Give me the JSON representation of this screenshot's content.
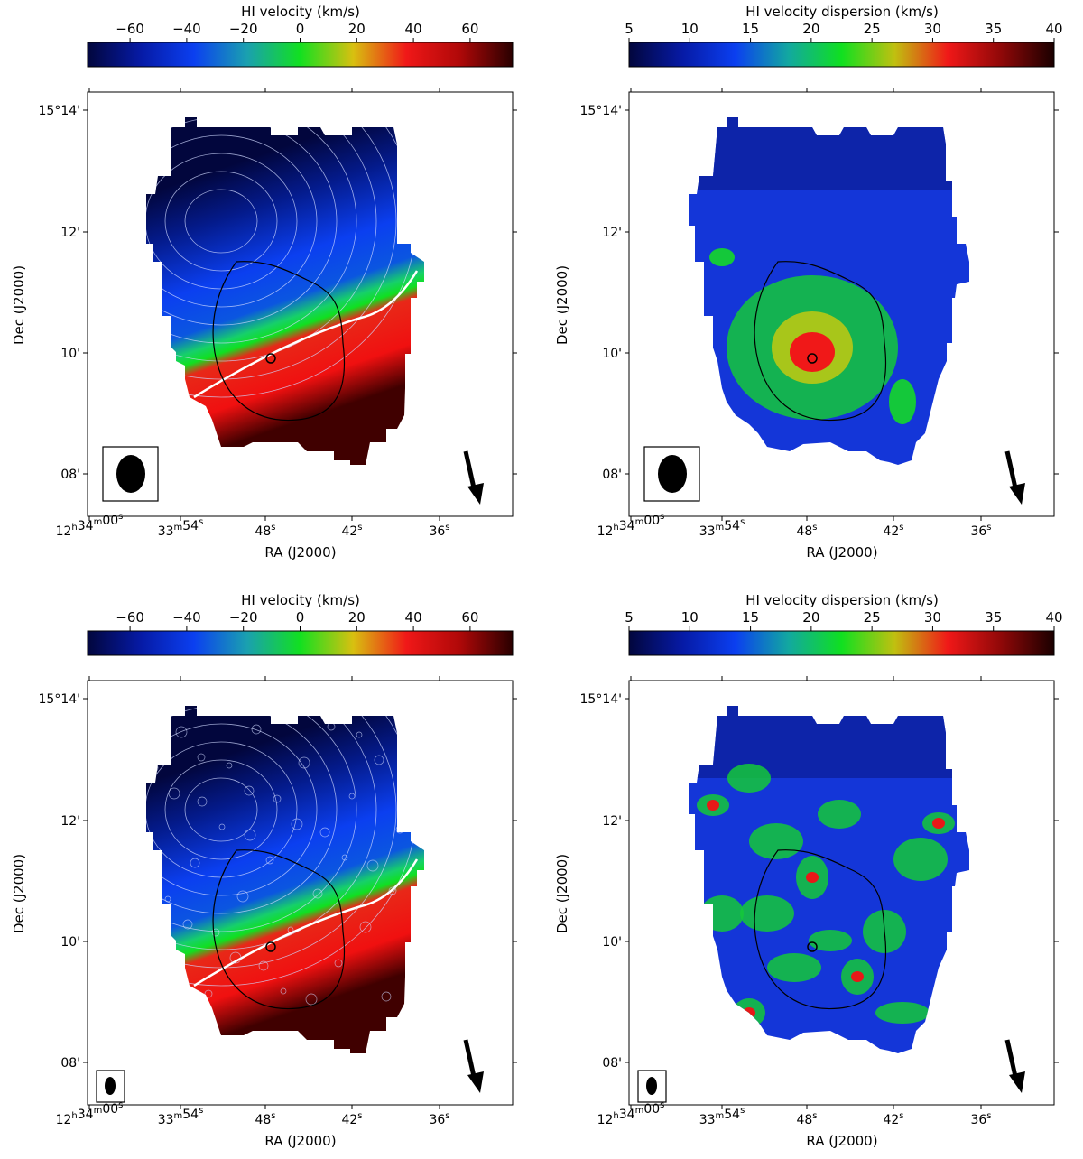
{
  "colors": {
    "velocity_stops": [
      "#02063d",
      "#061aa5",
      "#0b3ff0",
      "#1aa0b0",
      "#12e020",
      "#d8c010",
      "#f01818",
      "#b00808",
      "#2a0000"
    ],
    "dispersion_stops": [
      "#02063d",
      "#061aa5",
      "#0b3ff0",
      "#12a8a0",
      "#10e020",
      "#c0c010",
      "#f01818",
      "#900808",
      "#1a0000"
    ],
    "frame": "#000000",
    "contour": "#cfd8ff",
    "zero_contour": "#ffffff",
    "optical_contour": "#000000"
  },
  "panels": [
    {
      "id": "top-left",
      "colorbar": {
        "title": "HI velocity (km/s)",
        "ticks": [
          "−60",
          "−40",
          "−20",
          "0",
          "20",
          "40",
          "60"
        ],
        "tick_values": [
          -60,
          -40,
          -20,
          0,
          20,
          40,
          60
        ],
        "range": [
          -75,
          75
        ],
        "palette": "velocity"
      },
      "ylabel": "Dec (J2000)",
      "xlabel": "RA (J2000)",
      "yticks": [
        {
          "deg": "15°14'",
          "label": ""
        },
        {
          "deg": "12'"
        },
        {
          "deg": "10'"
        },
        {
          "deg": "08'"
        }
      ],
      "xticks": [
        {
          "h": "12",
          "hs": "h",
          "m": "34",
          "ms": "m",
          "s": "00",
          "ss": "s"
        },
        {
          "m": "33",
          "ms": "m",
          "s": "54",
          "ss": "s"
        },
        {
          "s": "48",
          "ss": "s"
        },
        {
          "s": "42",
          "ss": "s"
        },
        {
          "s": "36",
          "ss": "s"
        }
      ],
      "beam": "large",
      "map": "velocity-smooth"
    },
    {
      "id": "top-right",
      "colorbar": {
        "title": "HI velocity dispersion (km/s)",
        "ticks": [
          "5",
          "10",
          "15",
          "20",
          "25",
          "30",
          "35",
          "40"
        ],
        "tick_values": [
          5,
          10,
          15,
          20,
          25,
          30,
          35,
          40
        ],
        "range": [
          5,
          40
        ],
        "palette": "dispersion"
      },
      "ylabel": "Dec (J2000)",
      "xlabel": "RA (J2000)",
      "yticks": [
        {
          "deg": "15°14'"
        },
        {
          "deg": "12'"
        },
        {
          "deg": "10'"
        },
        {
          "deg": "08'"
        }
      ],
      "xticks": [
        {
          "h": "12",
          "hs": "h",
          "m": "34",
          "ms": "m",
          "s": "00",
          "ss": "s"
        },
        {
          "m": "33",
          "ms": "m",
          "s": "54",
          "ss": "s"
        },
        {
          "s": "48",
          "ss": "s"
        },
        {
          "s": "42",
          "ss": "s"
        },
        {
          "s": "36",
          "ss": "s"
        }
      ],
      "beam": "large",
      "map": "dispersion-smooth"
    },
    {
      "id": "bottom-left",
      "colorbar": {
        "title": "HI velocity (km/s)",
        "ticks": [
          "−60",
          "−40",
          "−20",
          "0",
          "20",
          "40",
          "60"
        ],
        "tick_values": [
          -60,
          -40,
          -20,
          0,
          20,
          40,
          60
        ],
        "range": [
          -75,
          75
        ],
        "palette": "velocity"
      },
      "ylabel": "Dec (J2000)",
      "xlabel": "RA (J2000)",
      "yticks": [
        {
          "deg": "15°14'"
        },
        {
          "deg": "12'"
        },
        {
          "deg": "10'"
        },
        {
          "deg": "08'"
        }
      ],
      "xticks": [
        {
          "h": "12",
          "hs": "h",
          "m": "34",
          "ms": "m",
          "s": "00",
          "ss": "s"
        },
        {
          "m": "33",
          "ms": "m",
          "s": "54",
          "ss": "s"
        },
        {
          "s": "48",
          "ss": "s"
        },
        {
          "s": "42",
          "ss": "s"
        },
        {
          "s": "36",
          "ss": "s"
        }
      ],
      "beam": "small",
      "map": "velocity-patchy"
    },
    {
      "id": "bottom-right",
      "colorbar": {
        "title": "HI velocity dispersion (km/s)",
        "ticks": [
          "5",
          "10",
          "15",
          "20",
          "25",
          "30",
          "35",
          "40"
        ],
        "tick_values": [
          5,
          10,
          15,
          20,
          25,
          30,
          35,
          40
        ],
        "range": [
          5,
          40
        ],
        "palette": "dispersion"
      },
      "ylabel": "Dec (J2000)",
      "xlabel": "RA (J2000)",
      "yticks": [
        {
          "deg": "15°14'"
        },
        {
          "deg": "12'"
        },
        {
          "deg": "10'"
        },
        {
          "deg": "08'"
        }
      ],
      "xticks": [
        {
          "h": "12",
          "hs": "h",
          "m": "34",
          "ms": "m",
          "s": "00",
          "ss": "s"
        },
        {
          "m": "33",
          "ms": "m",
          "s": "54",
          "ss": "s"
        },
        {
          "s": "48",
          "ss": "s"
        },
        {
          "s": "42",
          "ss": "s"
        },
        {
          "s": "36",
          "ss": "s"
        }
      ],
      "beam": "small",
      "map": "dispersion-patchy"
    }
  ]
}
